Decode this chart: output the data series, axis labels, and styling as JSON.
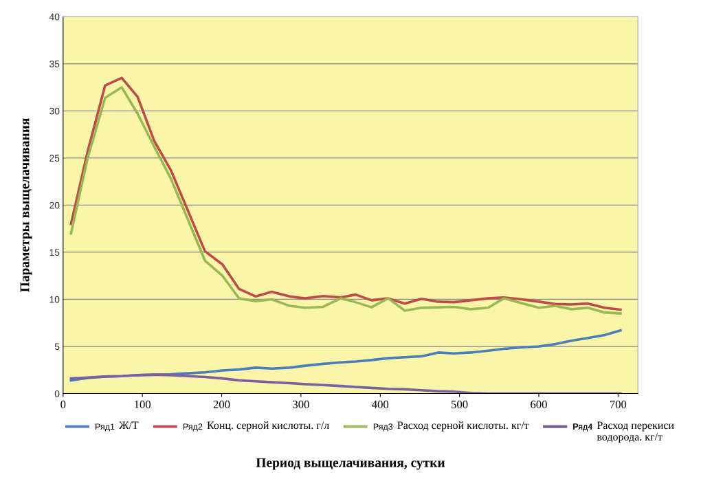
{
  "chart_data": {
    "type": "line",
    "xlabel": "Период выщелачивания, сутки",
    "ylabel": "Параметры выщелачивания",
    "x": [
      10,
      31,
      53,
      74,
      94,
      115,
      136,
      179,
      201,
      222,
      243,
      263,
      286,
      305,
      328,
      350,
      369,
      389,
      410,
      431,
      452,
      473,
      493,
      514,
      536,
      556,
      578,
      600,
      621,
      641,
      662,
      683,
      703
    ],
    "series": [
      {
        "name": "Ряд1",
        "color": "#4a7ebb",
        "values": [
          1.4,
          1.65,
          1.8,
          1.85,
          1.95,
          2.0,
          2.05,
          2.25,
          2.45,
          2.55,
          2.75,
          2.65,
          2.75,
          2.95,
          3.15,
          3.3,
          3.4,
          3.55,
          3.75,
          3.85,
          3.95,
          4.35,
          4.25,
          4.35,
          4.55,
          4.75,
          4.9,
          5.0,
          5.25,
          5.6,
          5.9,
          6.2,
          6.7
        ]
      },
      {
        "name": "Ряд2",
        "color": "#be4b48",
        "values": [
          18.0,
          25.7,
          32.7,
          33.5,
          31.5,
          26.8,
          23.7,
          15.1,
          13.7,
          11.1,
          10.3,
          10.8,
          10.3,
          10.1,
          10.35,
          10.2,
          10.5,
          9.9,
          10.1,
          9.55,
          10.05,
          9.75,
          9.7,
          9.9,
          10.1,
          10.2,
          10.0,
          9.75,
          9.5,
          9.45,
          9.55,
          9.1,
          8.9
        ]
      },
      {
        "name": "Ряд3",
        "color": "#98b954",
        "values": [
          17.0,
          25.0,
          31.4,
          32.5,
          29.7,
          26.2,
          22.8,
          14.1,
          12.5,
          10.1,
          9.8,
          10.0,
          9.3,
          9.1,
          9.2,
          10.1,
          9.7,
          9.15,
          10.1,
          8.8,
          9.1,
          9.15,
          9.2,
          8.95,
          9.1,
          10.1,
          9.6,
          9.1,
          9.3,
          8.95,
          9.1,
          8.6,
          8.5
        ]
      },
      {
        "name": "Ряд4",
        "color": "#7d60a0",
        "values": [
          1.6,
          1.7,
          1.8,
          1.85,
          1.95,
          2.0,
          1.95,
          1.75,
          1.6,
          1.4,
          1.3,
          1.2,
          1.1,
          1.0,
          0.9,
          0.8,
          0.7,
          0.6,
          0.5,
          0.45,
          0.35,
          0.25,
          0.2,
          0.05,
          0,
          0,
          0,
          0,
          0,
          0,
          0,
          0,
          0
        ]
      }
    ],
    "annotations": [
      "Ж/Т",
      "Конц. серной кислоты. г/л",
      "Расход серной кислоты. кг/т",
      "Расход перекиси водорода. кг/т"
    ],
    "xlim": [
      0,
      725
    ],
    "xticks": [
      0,
      100,
      200,
      300,
      400,
      500,
      600,
      700
    ],
    "ylim": [
      0,
      40
    ],
    "yticks": [
      0,
      5,
      10,
      15,
      20,
      25,
      30,
      35,
      40
    ],
    "grid": "y",
    "legend": "bottom",
    "marker": "none",
    "line_style": "solid"
  }
}
